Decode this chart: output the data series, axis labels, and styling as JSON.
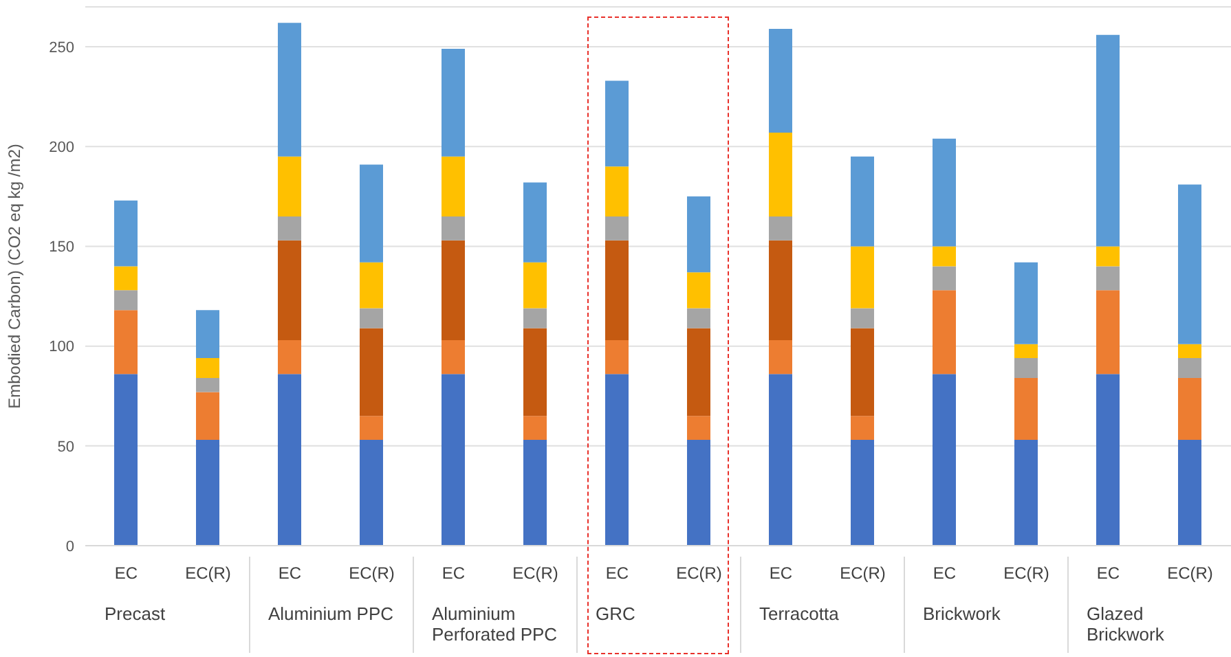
{
  "chart_data": {
    "type": "bar",
    "stacked": true,
    "ylabel": "Embodied Carbon) (CO2 eq kg /m2)",
    "categories": [
      "EC",
      "EC(R)",
      "EC",
      "EC(R)",
      "EC",
      "EC(R)",
      "EC",
      "EC(R)",
      "EC",
      "EC(R)",
      "EC",
      "EC(R)",
      "EC",
      "EC(R)"
    ],
    "series": [
      {
        "color": "#4472c4",
        "values": [
          86,
          53,
          86,
          53,
          86,
          53,
          86,
          53,
          86,
          53,
          86,
          53,
          86,
          53
        ]
      },
      {
        "color": "#ed7d31",
        "values": [
          32,
          24,
          17,
          12,
          17,
          12,
          17,
          12,
          17,
          12,
          42,
          31,
          42,
          31
        ]
      },
      {
        "color": "#c55a11",
        "values": [
          0,
          0,
          50,
          44,
          50,
          44,
          50,
          44,
          50,
          44,
          0,
          0,
          0,
          0
        ]
      },
      {
        "color": "#a5a5a5",
        "values": [
          10,
          7,
          12,
          10,
          12,
          10,
          12,
          10,
          12,
          10,
          12,
          10,
          12,
          10
        ]
      },
      {
        "color": "#ffc000",
        "values": [
          12,
          10,
          30,
          23,
          30,
          23,
          25,
          18,
          42,
          31,
          10,
          7,
          10,
          7
        ]
      },
      {
        "color": "#5b9bd5",
        "values": [
          33,
          24,
          67,
          49,
          54,
          40,
          43,
          38,
          52,
          45,
          54,
          41,
          106,
          80
        ]
      }
    ],
    "ylim": [
      0,
      270
    ],
    "yticks": [
      0,
      50,
      100,
      150,
      200,
      250
    ],
    "grid": "y",
    "annotations": [
      "Precast",
      "Aluminium PPC",
      "Aluminium Perforated PPC",
      "GRC",
      "Terracotta",
      "Brickwork",
      "Glazed Brickwork"
    ]
  }
}
